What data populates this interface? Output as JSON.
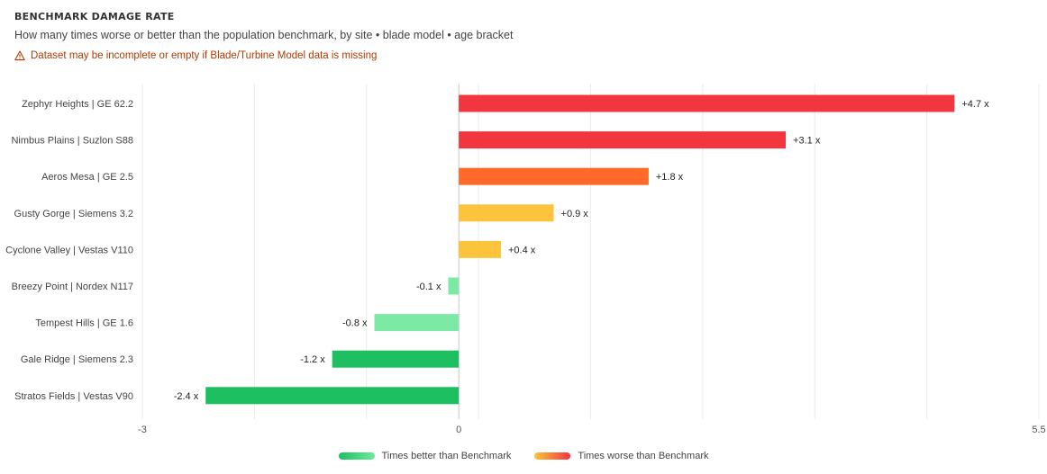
{
  "header": {
    "title": "BENCHMARK DAMAGE RATE",
    "subtitle": "How many times worse or better than the population benchmark, by site • blade model • age bracket",
    "warning": "Dataset may be incomplete or empty if Blade/Turbine Model data is missing"
  },
  "colors": {
    "severe": "#f2363f",
    "high": "#ff6a2b",
    "moderate": "#fbc43c",
    "better_light": "#7ceaa4",
    "better_strong": "#1dbf60",
    "grid": "#ececec",
    "warning": "#b23a00"
  },
  "legend": {
    "better": "Times better than Benchmark",
    "worse": "Times worse than Benchmark"
  },
  "chart_data": {
    "type": "bar",
    "orientation": "horizontal",
    "title": "BENCHMARK DAMAGE RATE",
    "xlabel": "",
    "ylabel": "",
    "xlim": [
      -3,
      5.5
    ],
    "x_ticks": [
      "-3",
      "0",
      "5.5"
    ],
    "grid": true,
    "legend_position": "bottom",
    "categories": [
      "Zephyr Heights | GE 62.2",
      "Nimbus Plains | Suzlon S88",
      "Aeros Mesa | GE 2.5",
      "Gusty Gorge | Siemens 3.2",
      "Cyclone Valley | Vestas V110",
      "Breezy Point | Nordex N117",
      "Tempest Hills | GE 1.6",
      "Gale Ridge | Siemens 2.3",
      "Stratos Fields | Vestas V90"
    ],
    "values": [
      4.7,
      3.1,
      1.8,
      0.9,
      0.4,
      -0.1,
      -0.8,
      -1.2,
      -2.4
    ],
    "data_labels": [
      "+4.7 x",
      "+3.1 x",
      "+1.8 x",
      "+0.9 x",
      "+0.4 x",
      "-0.1 x",
      "-0.8 x",
      "-1.2 x",
      "-2.4 x"
    ],
    "bar_colors": [
      "#f2363f",
      "#f2363f",
      "#ff6a2b",
      "#fbc43c",
      "#fbc43c",
      "#7ceaa4",
      "#7ceaa4",
      "#1dbf60",
      "#1dbf60"
    ]
  }
}
